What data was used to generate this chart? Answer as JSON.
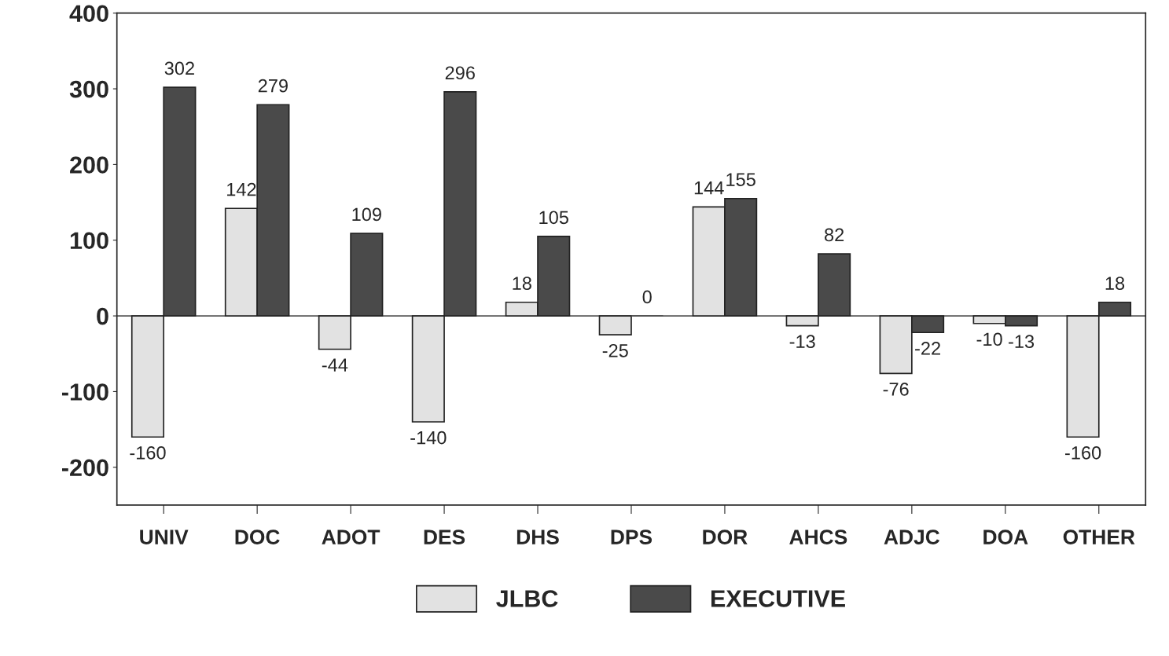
{
  "chart_data": {
    "type": "bar",
    "categories": [
      "UNIV",
      "DOC",
      "ADOT",
      "DES",
      "DHS",
      "DPS",
      "DOR",
      "AHCS",
      "ADJC",
      "DOA",
      "OTHER"
    ],
    "series": [
      {
        "name": "JLBC",
        "color": "#e2e2e2",
        "values": [
          -160,
          142,
          -44,
          -140,
          18,
          -25,
          144,
          -13,
          -76,
          -10,
          -160
        ]
      },
      {
        "name": "EXECUTIVE",
        "color": "#4a4a4a",
        "values": [
          302,
          279,
          109,
          296,
          105,
          0,
          155,
          82,
          -22,
          -13,
          18
        ]
      }
    ],
    "ylim": [
      -250,
      400
    ],
    "yticks": [
      -200,
      -100,
      0,
      100,
      200,
      300,
      400
    ],
    "ref_lines": [
      {
        "axis": "y",
        "value": 0,
        "color": "#555555",
        "line_style": "solid"
      }
    ],
    "data_labels": true,
    "grid": false,
    "legend": "bottom"
  }
}
